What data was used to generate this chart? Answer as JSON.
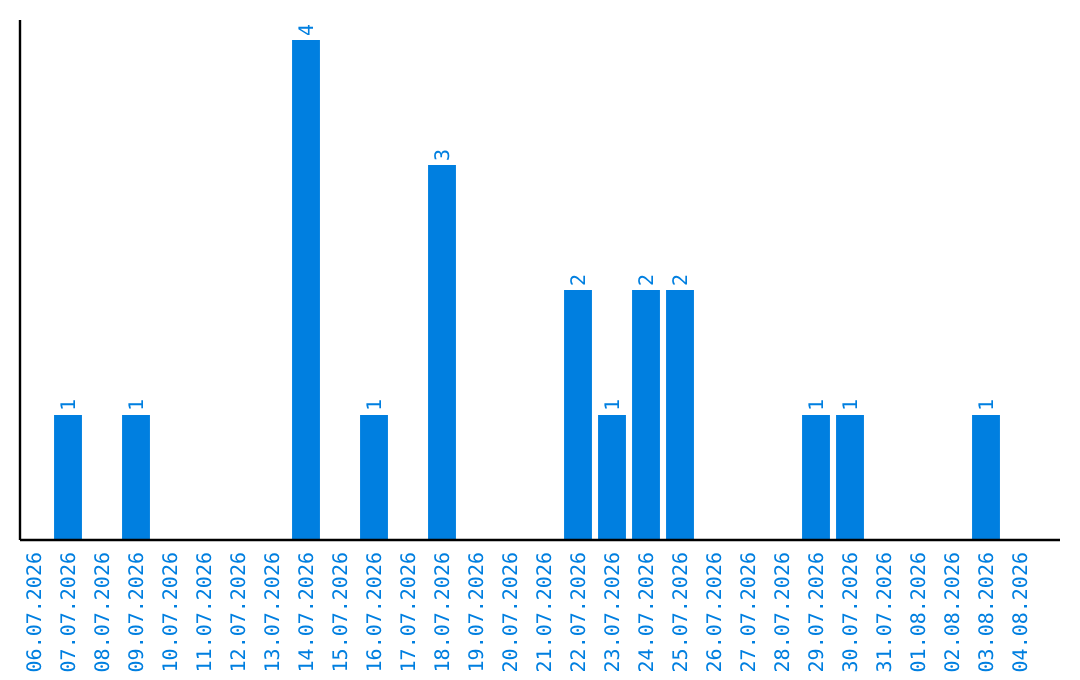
{
  "chart_data": {
    "type": "bar",
    "categories": [
      "06.07.2026",
      "07.07.2026",
      "08.07.2026",
      "09.07.2026",
      "10.07.2026",
      "11.07.2026",
      "12.07.2026",
      "13.07.2026",
      "14.07.2026",
      "15.07.2026",
      "16.07.2026",
      "17.07.2026",
      "18.07.2026",
      "19.07.2026",
      "20.07.2026",
      "21.07.2026",
      "22.07.2026",
      "23.07.2026",
      "24.07.2026",
      "25.07.2026",
      "26.07.2026",
      "27.07.2026",
      "28.07.2026",
      "29.07.2026",
      "30.07.2026",
      "31.07.2026",
      "01.08.2026",
      "02.08.2026",
      "03.08.2026",
      "04.08.2026"
    ],
    "values": [
      0,
      1,
      0,
      1,
      0,
      0,
      0,
      0,
      4,
      0,
      1,
      0,
      3,
      0,
      0,
      0,
      2,
      1,
      2,
      2,
      0,
      0,
      0,
      1,
      1,
      0,
      0,
      0,
      1,
      0
    ],
    "value_labels": [
      null,
      "1",
      null,
      "1",
      null,
      null,
      null,
      null,
      "4",
      null,
      "1",
      null,
      "3",
      null,
      null,
      null,
      "2",
      "1",
      "2",
      "2",
      null,
      null,
      null,
      "1",
      "1",
      null,
      null,
      null,
      "1",
      null
    ],
    "color": "#007fe0"
  }
}
